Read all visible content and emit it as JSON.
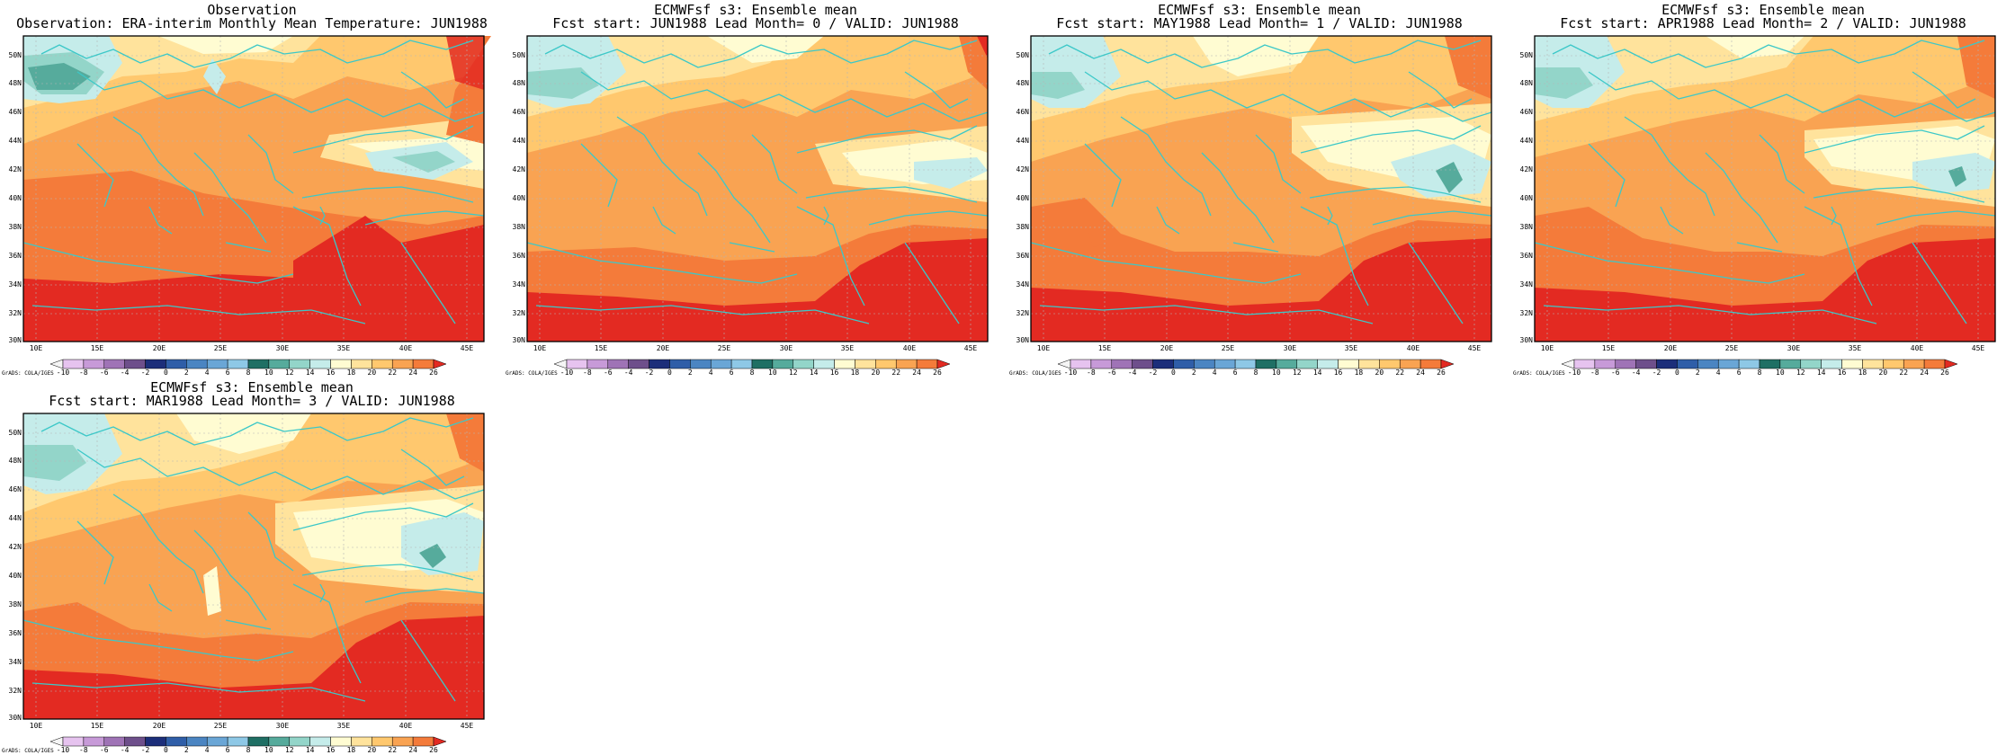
{
  "figure": {
    "panels": [
      {
        "title_line1": "Observation",
        "title_line2": "Observation: ERA-interim Monthly Mean Temperature: JUN1988"
      },
      {
        "title_line1": "ECMWFsf s3: Ensemble mean",
        "title_line2": "Fcst start: JUN1988  Lead Month= 0 / VALID: JUN1988"
      },
      {
        "title_line1": "ECMWFsf s3: Ensemble mean",
        "title_line2": "Fcst start: MAY1988  Lead Month= 1 / VALID: JUN1988"
      },
      {
        "title_line1": "ECMWFsf s3: Ensemble mean",
        "title_line2": "Fcst start: APR1988  Lead Month= 2 / VALID: JUN1988"
      },
      {
        "title_line1": "ECMWFsf s3: Ensemble mean",
        "title_line2": "Fcst start: MAR1988  Lead Month= 3 / VALID: JUN1988"
      }
    ],
    "lat_labels": [
      "50N",
      "48N",
      "46N",
      "44N",
      "42N",
      "40N",
      "38N",
      "36N",
      "34N",
      "32N",
      "30N"
    ],
    "lon_labels": [
      "10E",
      "15E",
      "20E",
      "25E",
      "30E",
      "35E",
      "40E",
      "45E"
    ],
    "colorbar": {
      "ticks": [
        "-10",
        "-8",
        "-6",
        "-4",
        "-2",
        "0",
        "2",
        "4",
        "6",
        "8",
        "10",
        "12",
        "14",
        "16",
        "18",
        "20",
        "22",
        "24",
        "26"
      ],
      "credit": "GrADS: COLA/IGES",
      "colors": [
        "#f5f5f5",
        "#e6c3ef",
        "#c79ad8",
        "#9f73b6",
        "#6e4f8b",
        "#1c2e7a",
        "#2f5ea8",
        "#4b85c2",
        "#6aa6d6",
        "#8ec8e6",
        "#1f6f64",
        "#56ab9c",
        "#93d5c9",
        "#c5ecea",
        "#fffcd2",
        "#ffe39c",
        "#ffc86e",
        "#f9a352",
        "#f47b3a",
        "#e32a22"
      ]
    },
    "color_scheme": {
      "level_16": "#c5ecea",
      "level_18": "#fffcd2",
      "level_20": "#ffe39c",
      "level_22": "#ffc86e",
      "level_24": "#f9a352",
      "level_26": "#f47b3a",
      "above_26": "#e32a22",
      "level_12": "#56ab9c",
      "coastline": "#3cc8c8"
    }
  }
}
